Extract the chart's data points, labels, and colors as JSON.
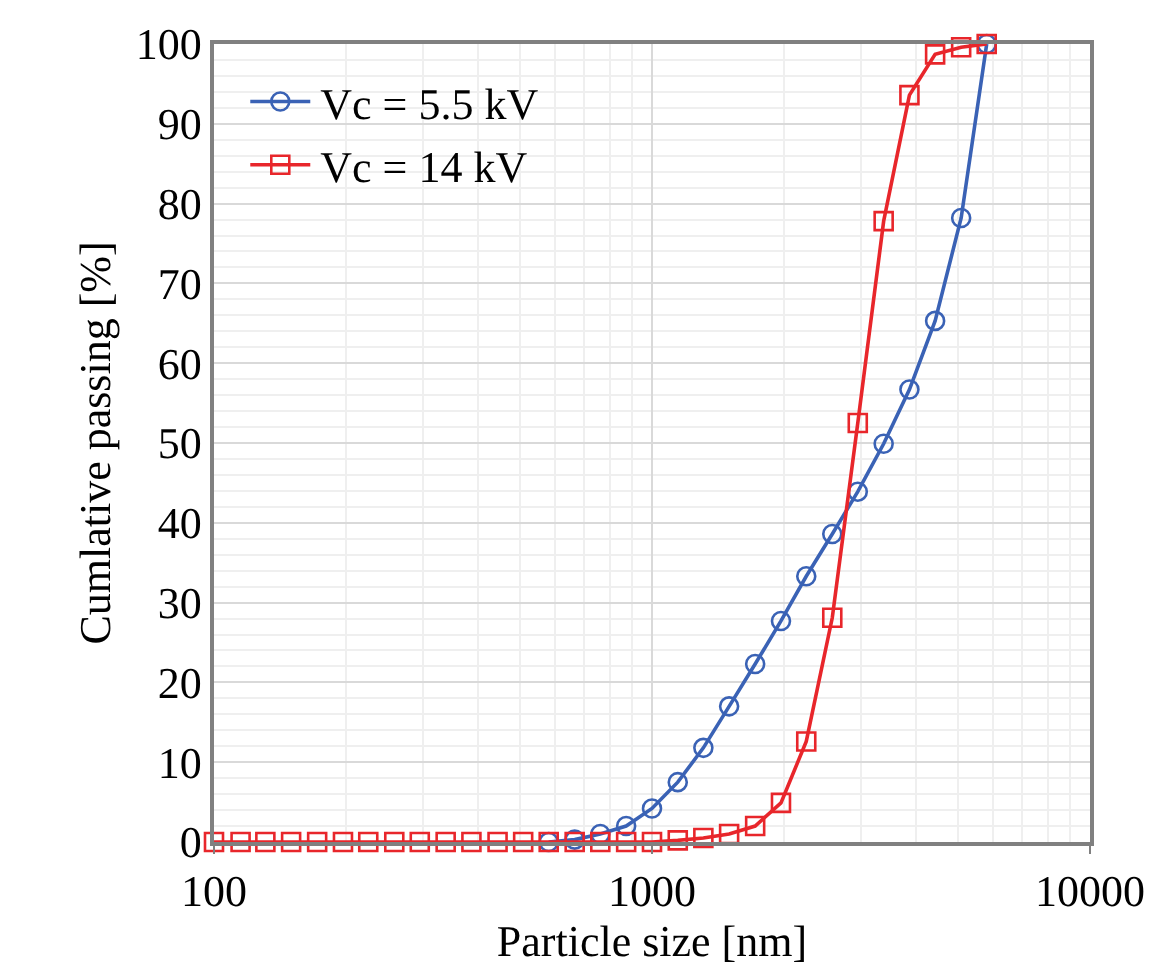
{
  "chart_data": {
    "type": "line",
    "xlabel": "Particle size [nm]",
    "ylabel": "Cumlative passing [%]",
    "log": "x",
    "xlim": [
      100,
      10000
    ],
    "xticks": [
      100,
      1000,
      10000
    ],
    "ylim": [
      0,
      100
    ],
    "yticks": [
      0,
      10,
      20,
      30,
      40,
      50,
      60,
      70,
      80,
      90,
      100
    ],
    "grid": true,
    "legend": "top left",
    "line_style": "solid",
    "x": [
      100,
      115,
      131,
      150,
      172,
      197,
      225,
      258,
      295,
      338,
      387,
      444,
      508,
      581,
      666,
      762,
      873,
      1000,
      1145,
      1310,
      1500,
      1720,
      1970,
      2250,
      2580,
      2950,
      3380,
      3870,
      4430,
      5080,
      5810
    ],
    "series": [
      {
        "name": "Vc = 5.5 kV",
        "color": "#3a62b5",
        "marker": "circle",
        "values": [
          null,
          null,
          null,
          null,
          null,
          null,
          null,
          null,
          null,
          null,
          null,
          null,
          null,
          0,
          0.3,
          1,
          2,
          4.2,
          7.5,
          11.8,
          17,
          22.3,
          27.7,
          33.3,
          38.6,
          43.9,
          49.9,
          56.7,
          65.3,
          78.2,
          100
        ]
      },
      {
        "name": "Vc = 14 kV",
        "color": "#e8262b",
        "marker": "square",
        "values": [
          0,
          0,
          0,
          0,
          0,
          0,
          0,
          0,
          0,
          0,
          0,
          0,
          0,
          0,
          0,
          0,
          0,
          0,
          0.2,
          0.5,
          1,
          2,
          4.9,
          12.6,
          28.1,
          52.5,
          77.8,
          93.6,
          98.7,
          99.6,
          100
        ]
      }
    ]
  }
}
